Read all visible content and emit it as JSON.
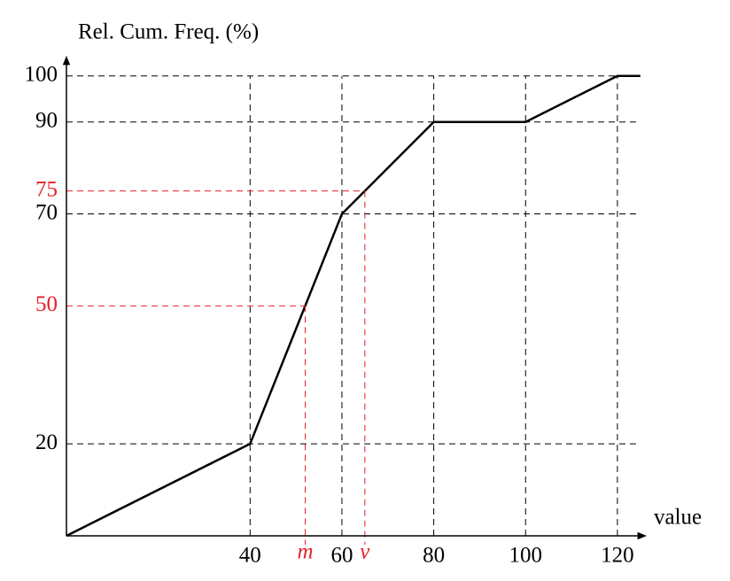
{
  "chart_data": {
    "type": "line",
    "y_label": "Rel. Cum. Freq. (%)",
    "x_label": "value",
    "x": [
      0,
      40,
      60,
      80,
      100,
      120,
      125
    ],
    "values": [
      0,
      20,
      70,
      90,
      90,
      100,
      100
    ],
    "color": "#000000",
    "xlim": [
      0,
      126
    ],
    "ylim": [
      0,
      104
    ],
    "xticks": [
      40,
      60,
      80,
      100,
      120
    ],
    "yticks": [
      20,
      70,
      90,
      100
    ],
    "grid": true,
    "markers": [
      {
        "label": "m",
        "x": 52,
        "y": 50
      },
      {
        "label": "v",
        "x": 65,
        "y": 75
      }
    ],
    "marker_color": "#e8202a"
  }
}
